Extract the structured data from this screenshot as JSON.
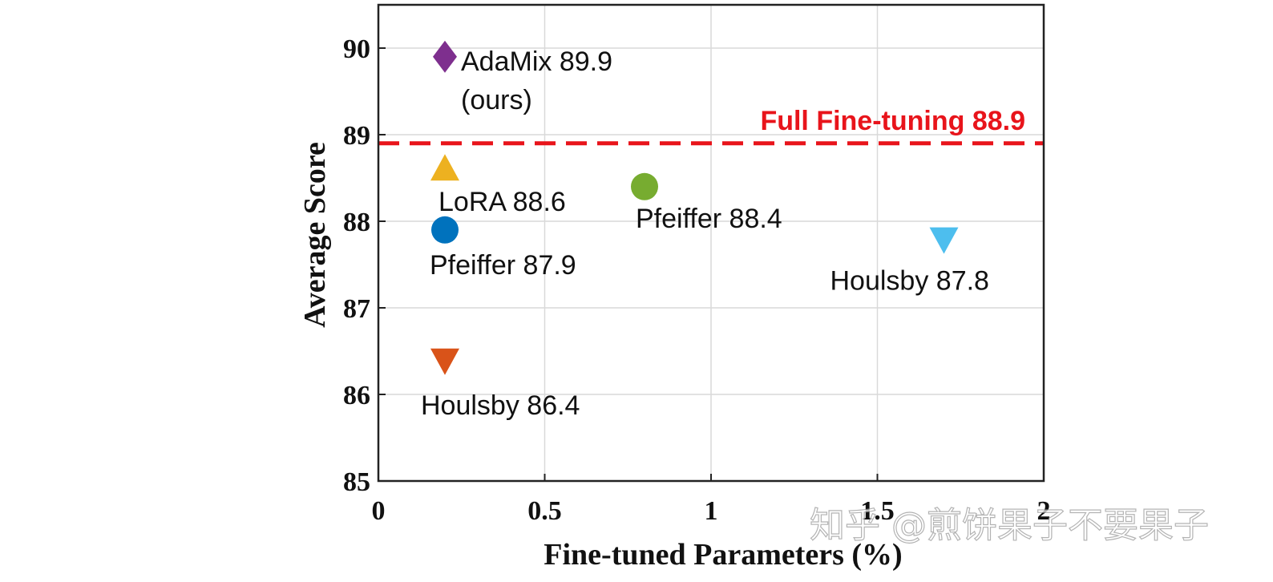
{
  "chart_data": {
    "type": "scatter",
    "xlabel": "Fine-tuned Parameters (%)",
    "ylabel": "Average Score",
    "xlim": [
      0,
      2
    ],
    "ylim": [
      85,
      90.5
    ],
    "xticks": [
      0,
      0.5,
      1,
      1.5,
      2
    ],
    "xtick_labels": [
      "0",
      "0.5",
      "1",
      "1.5",
      "2"
    ],
    "yticks": [
      85,
      86,
      87,
      88,
      89,
      90
    ],
    "ytick_labels": [
      "85",
      "86",
      "87",
      "88",
      "89",
      "90"
    ],
    "grid": true,
    "points": [
      {
        "name": "AdaMix",
        "label": "AdaMix 89.9",
        "sublabel": "(ours)",
        "x": 0.2,
        "y": 89.9,
        "marker": "diamond",
        "color": "#7E2F8E"
      },
      {
        "name": "LoRA",
        "label": "LoRA 88.6",
        "x": 0.2,
        "y": 88.6,
        "marker": "triangle-up",
        "color": "#EDB120"
      },
      {
        "name": "Pfeiffer",
        "label": "Pfeiffer 87.9",
        "x": 0.2,
        "y": 87.9,
        "marker": "circle",
        "color": "#0072BD"
      },
      {
        "name": "Houlsby",
        "label": "Houlsby 86.4",
        "x": 0.2,
        "y": 86.4,
        "marker": "triangle-down",
        "color": "#D95319"
      },
      {
        "name": "Pfeiffer",
        "label": "Pfeiffer 88.4",
        "x": 0.8,
        "y": 88.4,
        "marker": "circle",
        "color": "#77AC30"
      },
      {
        "name": "Houlsby",
        "label": "Houlsby 87.8",
        "x": 1.7,
        "y": 87.8,
        "marker": "triangle-down",
        "color": "#4DBEEE"
      }
    ],
    "reference_line": {
      "label": "Full Fine-tuning 88.9",
      "y": 88.9,
      "style": "dashed",
      "color": "#E8141B"
    }
  },
  "watermark": "知乎 @煎饼果子不要果子"
}
